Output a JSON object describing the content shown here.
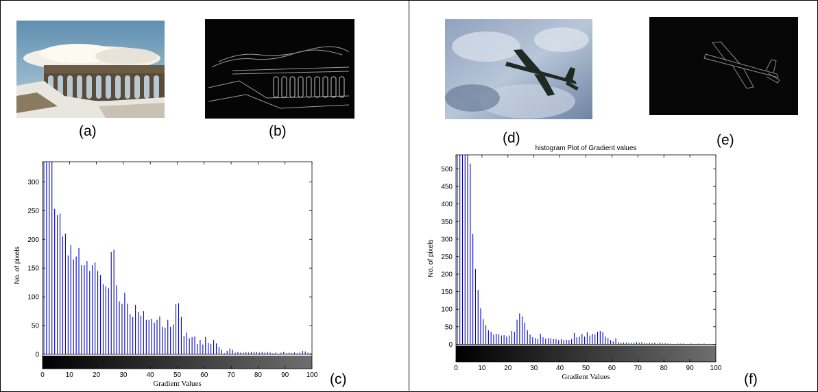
{
  "panels": {
    "a": "(a)",
    "b": "(b)",
    "c": "(c)",
    "d": "(d)",
    "e": "(e)",
    "f": "(f)"
  },
  "colors": {
    "bar": "#0000cc",
    "axis": "#000000"
  },
  "chart_data": [
    {
      "type": "bar",
      "title": "",
      "xlabel": "Gradient Values",
      "ylabel": "No. of pixels",
      "xlim": [
        0,
        100
      ],
      "ylim": [
        -25,
        335
      ],
      "xticks": [
        "0",
        "10",
        "20",
        "30",
        "40",
        "50",
        "60",
        "70",
        "80",
        "90",
        "100"
      ],
      "yticks": [
        "0",
        "50",
        "100",
        "150",
        "200",
        "250",
        "300"
      ],
      "x": [
        0,
        1,
        2,
        3,
        4,
        5,
        6,
        7,
        8,
        9,
        10,
        11,
        12,
        13,
        14,
        15,
        16,
        17,
        18,
        19,
        20,
        21,
        22,
        23,
        24,
        25,
        26,
        27,
        28,
        29,
        30,
        31,
        32,
        33,
        34,
        35,
        36,
        37,
        38,
        39,
        40,
        41,
        42,
        43,
        44,
        45,
        46,
        47,
        48,
        49,
        50,
        51,
        52,
        53,
        54,
        55,
        56,
        57,
        58,
        59,
        60,
        61,
        62,
        63,
        64,
        65,
        66,
        67,
        68,
        69,
        70,
        71,
        72,
        73,
        74,
        75,
        76,
        77,
        78,
        79,
        80,
        81,
        82,
        83,
        84,
        85,
        86,
        87,
        88,
        89,
        90,
        91,
        92,
        93,
        94,
        95,
        96,
        97,
        98,
        99
      ],
      "values": [
        335,
        335,
        335,
        335,
        253,
        242,
        245,
        205,
        210,
        172,
        190,
        165,
        170,
        185,
        155,
        155,
        162,
        145,
        155,
        160,
        145,
        138,
        122,
        118,
        115,
        178,
        182,
        120,
        92,
        88,
        107,
        88,
        70,
        65,
        86,
        74,
        67,
        75,
        60,
        60,
        62,
        55,
        60,
        66,
        48,
        46,
        60,
        48,
        52,
        87,
        89,
        65,
        32,
        38,
        28,
        30,
        31,
        18,
        25,
        17,
        30,
        20,
        18,
        25,
        19,
        13,
        8,
        2,
        6,
        10,
        8,
        3,
        4,
        3,
        3,
        4,
        3,
        4,
        4,
        4,
        3,
        4,
        3,
        4,
        3,
        2,
        3,
        1,
        3,
        4,
        2,
        3,
        2,
        3,
        2,
        3,
        6,
        5,
        3,
        2
      ]
    },
    {
      "type": "bar",
      "title": "histogram Plot of Gradient values",
      "xlabel": "Gradient Values",
      "ylabel": "No. of pixels",
      "xlim": [
        0,
        100
      ],
      "ylim": [
        -50,
        540
      ],
      "xticks": [
        "0",
        "10",
        "20",
        "30",
        "40",
        "50",
        "60",
        "70",
        "80",
        "90",
        "100"
      ],
      "yticks": [
        "0",
        "50",
        "100",
        "150",
        "200",
        "250",
        "300",
        "350",
        "400",
        "450",
        "500"
      ],
      "x": [
        0,
        1,
        2,
        3,
        4,
        5,
        6,
        7,
        8,
        9,
        10,
        11,
        12,
        13,
        14,
        15,
        16,
        17,
        18,
        19,
        20,
        21,
        22,
        23,
        24,
        25,
        26,
        27,
        28,
        29,
        30,
        31,
        32,
        33,
        34,
        35,
        36,
        37,
        38,
        39,
        40,
        41,
        42,
        43,
        44,
        45,
        46,
        47,
        48,
        49,
        50,
        51,
        52,
        53,
        54,
        55,
        56,
        57,
        58,
        59,
        60,
        61,
        62,
        63,
        64,
        65,
        66,
        67,
        68,
        69,
        70,
        71,
        72,
        73,
        74,
        75,
        76,
        77,
        78,
        79,
        80,
        81,
        82,
        83,
        84,
        85,
        86,
        87,
        88,
        89,
        90,
        91,
        92,
        93,
        94,
        95,
        96,
        97,
        98,
        99
      ],
      "values": [
        540,
        540,
        540,
        540,
        540,
        515,
        315,
        215,
        155,
        103,
        72,
        55,
        40,
        35,
        28,
        30,
        28,
        25,
        26,
        22,
        25,
        38,
        36,
        70,
        88,
        80,
        62,
        40,
        28,
        20,
        18,
        15,
        30,
        20,
        16,
        18,
        17,
        15,
        15,
        12,
        15,
        12,
        13,
        12,
        15,
        32,
        20,
        22,
        30,
        22,
        35,
        25,
        30,
        28,
        36,
        38,
        35,
        22,
        18,
        12,
        8,
        17,
        6,
        5,
        5,
        5,
        4,
        4,
        5,
        6,
        5,
        6,
        4,
        3,
        4,
        3,
        5,
        2,
        6,
        3,
        3,
        2,
        2,
        1,
        1,
        2,
        2,
        2,
        1,
        1,
        2,
        1,
        1,
        2,
        1,
        2,
        1,
        1,
        0,
        0
      ]
    }
  ]
}
